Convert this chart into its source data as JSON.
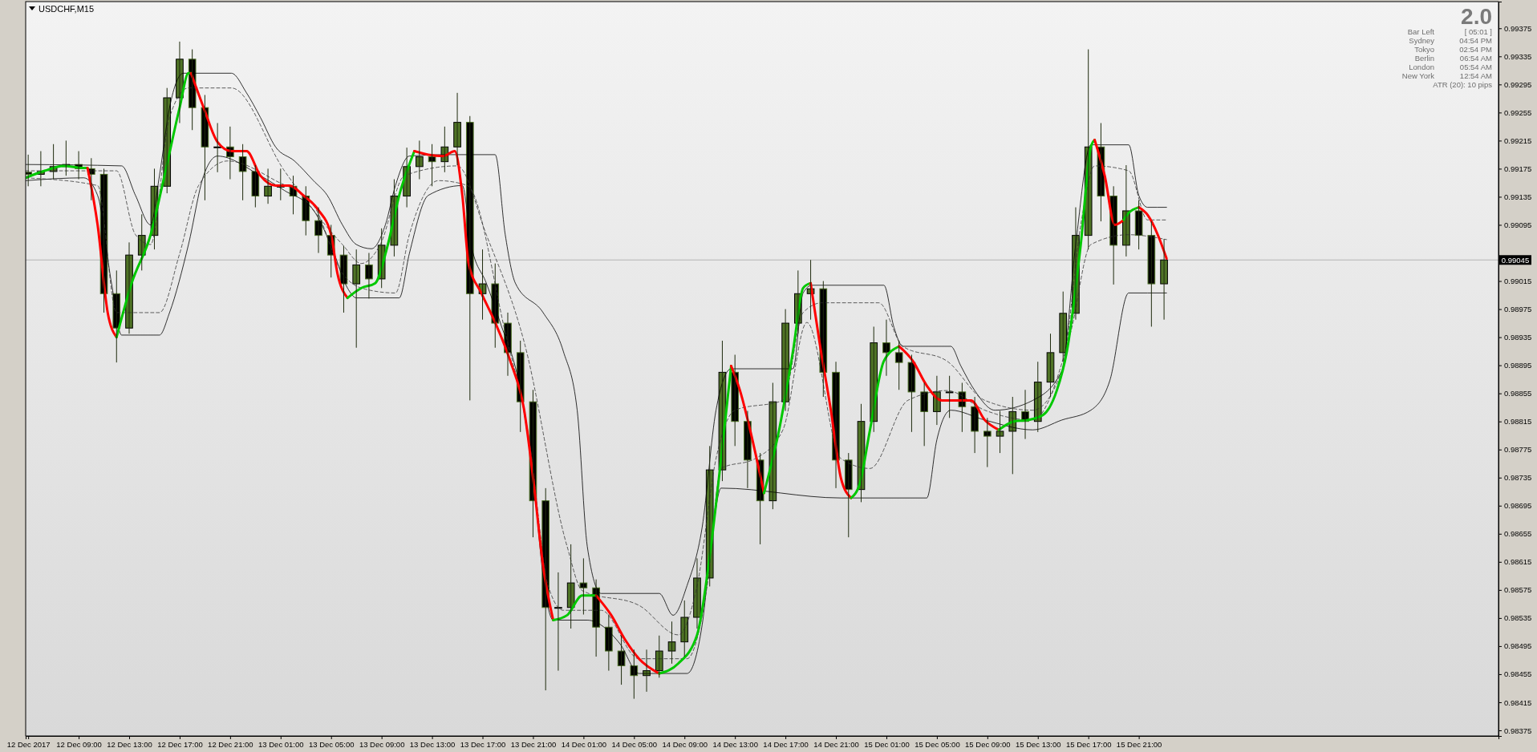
{
  "chart_data": {
    "type": "candlestick",
    "title": "USDCHF,M15",
    "annotations": [
      "2.0",
      "Bar Left",
      "[ 05:01 ]",
      "Sydney",
      "04:54 PM",
      "Tokyo",
      "02:54 PM",
      "Berlin",
      "06:54 AM",
      "London",
      "05:54 AM",
      "New York",
      "12:54 AM",
      "ATR (20): 10 pips"
    ],
    "xlim": [
      "2017-12-12T04:48",
      "2017-12-17T01:30"
    ],
    "xticks": [
      {
        "value": "2017-12-12T05:00",
        "label": "12 Dec 2017"
      },
      {
        "value": "2017-12-12T09:00",
        "label": "12 Dec 09:00"
      },
      {
        "value": "2017-12-12T13:00",
        "label": "12 Dec 13:00"
      },
      {
        "value": "2017-12-12T17:00",
        "label": "12 Dec 17:00"
      },
      {
        "value": "2017-12-12T21:00",
        "label": "12 Dec 21:00"
      },
      {
        "value": "2017-12-13T01:00",
        "label": "13 Dec 01:00"
      },
      {
        "value": "2017-12-13T05:00",
        "label": "13 Dec 05:00"
      },
      {
        "value": "2017-12-13T09:00",
        "label": "13 Dec 09:00"
      },
      {
        "value": "2017-12-13T13:00",
        "label": "13 Dec 13:00"
      },
      {
        "value": "2017-12-13T17:00",
        "label": "13 Dec 17:00"
      },
      {
        "value": "2017-12-13T21:00",
        "label": "13 Dec 21:00"
      },
      {
        "value": "2017-12-14T01:00",
        "label": "14 Dec 01:00"
      },
      {
        "value": "2017-12-14T05:00",
        "label": "14 Dec 05:00"
      },
      {
        "value": "2017-12-14T09:00",
        "label": "14 Dec 09:00"
      },
      {
        "value": "2017-12-14T13:00",
        "label": "14 Dec 13:00"
      },
      {
        "value": "2017-12-14T17:00",
        "label": "14 Dec 17:00"
      },
      {
        "value": "2017-12-14T21:00",
        "label": "14 Dec 21:00"
      },
      {
        "value": "2017-12-15T01:00",
        "label": "15 Dec 01:00"
      },
      {
        "value": "2017-12-15T05:00",
        "label": "15 Dec 05:00"
      },
      {
        "value": "2017-12-15T09:00",
        "label": "15 Dec 09:00"
      },
      {
        "value": "2017-12-15T13:00",
        "label": "15 Dec 13:00"
      },
      {
        "value": "2017-12-15T17:00",
        "label": "15 Dec 17:00"
      },
      {
        "value": "2017-12-15T21:00",
        "label": "15 Dec 21:00"
      }
    ],
    "ylim": [
      0.98367,
      0.99413
    ],
    "yticks": [
      0.99375,
      0.99335,
      0.99295,
      0.99255,
      0.99215,
      0.99175,
      0.99135,
      0.99095,
      0.99015,
      0.98975,
      0.98935,
      0.98895,
      0.98855,
      0.98815,
      0.98775,
      0.98735,
      0.98695,
      0.98655,
      0.98615,
      0.98575,
      0.98535,
      0.98495,
      0.98455,
      0.98415,
      0.98375
    ],
    "ref_lines": [
      {
        "axis": "y",
        "value": 0.99045,
        "label": "0.99045",
        "color": "#b4b4b4"
      }
    ],
    "series": [
      {
        "type": "line",
        "color": "#000000",
        "line_style": "solid",
        "x": [
          "2017-12-12T04:48",
          "2017-12-12T12:24",
          "2017-12-12T13:30",
          "2017-12-12T14:42",
          "2017-12-12T15:24",
          "2017-12-12T16:12",
          "2017-12-12T17:18",
          "2017-12-12T21:06",
          "2017-12-12T22:18",
          "2017-12-12T23:24",
          "2017-12-13T00:36",
          "2017-12-13T02:06",
          "2017-12-13T03:36",
          "2017-12-13T04:42",
          "2017-12-13T05:54",
          "2017-12-13T07:00",
          "2017-12-13T08:12",
          "2017-12-13T09:18",
          "2017-12-13T10:06",
          "2017-12-13T11:12",
          "2017-12-13T14:12",
          "2017-12-13T18:00",
          "2017-12-13T18:48",
          "2017-12-13T19:36",
          "2017-12-13T21:48",
          "2017-12-13T23:24",
          "2017-12-14T00:30",
          "2017-12-14T01:18",
          "2017-12-14T02:24",
          "2017-12-14T07:00",
          "2017-12-14T08:06",
          "2017-12-14T09:12",
          "2017-12-14T10:24",
          "2017-12-14T11:30",
          "2017-12-14T12:42",
          "2017-12-14T17:36",
          "2017-12-14T18:24",
          "2017-12-14T19:06",
          "2017-12-15T00:48",
          "2017-12-15T01:36",
          "2017-12-15T02:18",
          "2017-12-15T06:06",
          "2017-12-15T06:54",
          "2017-12-15T08:00",
          "2017-12-15T09:36",
          "2017-12-15T12:36",
          "2017-12-15T14:54",
          "2017-12-15T16:00",
          "2017-12-15T17:12",
          "2017-12-15T20:12",
          "2017-12-15T21:00",
          "2017-12-15T21:42",
          "2017-12-15T23:12"
        ],
        "values": [
          0.99181,
          0.99179,
          0.99137,
          0.99095,
          0.99165,
          0.99262,
          0.99311,
          0.99311,
          0.99283,
          0.99248,
          0.99206,
          0.99186,
          0.99158,
          0.99137,
          0.99095,
          0.99067,
          0.99061,
          0.99095,
          0.99151,
          0.99193,
          0.99195,
          0.99195,
          0.99081,
          0.99012,
          0.9897,
          0.98915,
          0.98831,
          0.98637,
          0.9857,
          0.9857,
          0.98539,
          0.98581,
          0.98664,
          0.98831,
          0.9889,
          0.9889,
          0.98998,
          0.99009,
          0.99009,
          0.98949,
          0.98922,
          0.98922,
          0.98894,
          0.98859,
          0.98831,
          0.98845,
          0.98887,
          0.99067,
          0.99209,
          0.99209,
          0.99137,
          0.9912,
          0.9912
        ]
      },
      {
        "type": "line",
        "color": "#000000",
        "line_style": "solid",
        "x": [
          "2017-12-12T04:48",
          "2017-12-12T09:24",
          "2017-12-12T10:30",
          "2017-12-12T11:36",
          "2017-12-12T12:24",
          "2017-12-12T15:24",
          "2017-12-12T16:12",
          "2017-12-12T17:42",
          "2017-12-12T18:54",
          "2017-12-12T20:00",
          "2017-12-12T23:24",
          "2017-12-13T01:18",
          "2017-12-13T03:36",
          "2017-12-13T05:06",
          "2017-12-13T06:18",
          "2017-12-13T07:00",
          "2017-12-13T10:24",
          "2017-12-13T11:12",
          "2017-12-13T12:42",
          "2017-12-13T15:24",
          "2017-12-13T16:06",
          "2017-12-13T17:18",
          "2017-12-13T18:24",
          "2017-12-13T20:00",
          "2017-12-13T21:06",
          "2017-12-13T21:48",
          "2017-12-13T22:36",
          "2017-12-14T01:18",
          "2017-12-14T03:54",
          "2017-12-14T05:24",
          "2017-12-14T09:12",
          "2017-12-14T10:24",
          "2017-12-14T11:06",
          "2017-12-14T11:54",
          "2017-12-14T21:24",
          "2017-12-15T04:12",
          "2017-12-15T05:00",
          "2017-12-15T06:06",
          "2017-12-15T08:48",
          "2017-12-15T12:36",
          "2017-12-15T14:54",
          "2017-12-15T17:12",
          "2017-12-15T18:42",
          "2017-12-15T20:12",
          "2017-12-15T23:12"
        ],
        "values": [
          0.99158,
          0.99162,
          0.99137,
          0.99012,
          0.98938,
          0.98938,
          0.9897,
          0.99067,
          0.99165,
          0.99193,
          0.99165,
          0.99144,
          0.99116,
          0.99061,
          0.99005,
          0.98991,
          0.98991,
          0.99054,
          0.99137,
          0.99151,
          0.99067,
          0.99012,
          0.98956,
          0.98859,
          0.9872,
          0.98595,
          0.98532,
          0.98532,
          0.98498,
          0.98456,
          0.98456,
          0.98525,
          0.98637,
          0.9872,
          0.98706,
          0.98706,
          0.98789,
          0.98831,
          0.98817,
          0.98803,
          0.98817,
          0.98831,
          0.98873,
          0.98998,
          0.98998
        ]
      },
      {
        "type": "line",
        "color": "#333333",
        "line_style": "dashed",
        "x": [
          "2017-12-12T04:48",
          "2017-12-12T12:00",
          "2017-12-12T13:30",
          "2017-12-12T14:42",
          "2017-12-12T16:12",
          "2017-12-12T17:42",
          "2017-12-12T21:06",
          "2017-12-13T01:18",
          "2017-12-13T05:54",
          "2017-12-13T07:24",
          "2017-12-13T08:54",
          "2017-12-13T10:48",
          "2017-12-13T15:00",
          "2017-12-13T17:18",
          "2017-12-13T20:18",
          "2017-12-13T23:42",
          "2017-12-14T00:54",
          "2017-12-14T05:24",
          "2017-12-14T08:30",
          "2017-12-14T10:00",
          "2017-12-14T11:30",
          "2017-12-14T13:00",
          "2017-12-14T16:48",
          "2017-12-14T18:24",
          "2017-12-14T19:54",
          "2017-12-15T00:24",
          "2017-12-15T02:18",
          "2017-12-15T05:48",
          "2017-12-15T08:48",
          "2017-12-15T12:36",
          "2017-12-15T14:54",
          "2017-12-15T16:24",
          "2017-12-15T17:30",
          "2017-12-15T20:12",
          "2017-12-15T21:42",
          "2017-12-15T23:12"
        ],
        "values": [
          0.99172,
          0.99172,
          0.99081,
          0.99067,
          0.99248,
          0.9929,
          0.9929,
          0.99172,
          0.99067,
          0.9904,
          0.99067,
          0.99165,
          0.99179,
          0.99081,
          0.98928,
          0.98637,
          0.98574,
          0.98553,
          0.98511,
          0.98581,
          0.98762,
          0.98831,
          0.98845,
          0.9897,
          0.98984,
          0.98984,
          0.98922,
          0.98901,
          0.98845,
          0.98831,
          0.98887,
          0.99095,
          0.99179,
          0.99172,
          0.99102,
          0.99102
        ]
      },
      {
        "type": "line",
        "color": "#333333",
        "line_style": "dashed",
        "x": [
          "2017-12-12T04:48",
          "2017-12-12T10:30",
          "2017-12-12T12:00",
          "2017-12-12T15:24",
          "2017-12-12T17:00",
          "2017-12-12T18:30",
          "2017-12-12T20:48",
          "2017-12-13T00:36",
          "2017-12-13T03:36",
          "2017-12-13T05:54",
          "2017-12-13T07:24",
          "2017-12-13T10:06",
          "2017-12-13T11:12",
          "2017-12-13T13:30",
          "2017-12-13T15:48",
          "2017-12-13T18:48",
          "2017-12-13T20:42",
          "2017-12-13T22:12",
          "2017-12-13T23:24",
          "2017-12-14T02:24",
          "2017-12-14T05:24",
          "2017-12-14T09:12",
          "2017-12-14T10:48",
          "2017-12-14T11:54",
          "2017-12-14T14:36",
          "2017-12-14T16:48",
          "2017-12-14T18:42",
          "2017-12-14T21:24",
          "2017-12-14T23:42",
          "2017-12-15T02:42",
          "2017-12-15T05:48",
          "2017-12-15T08:48",
          "2017-12-15T12:36",
          "2017-12-15T15:36",
          "2017-12-15T17:12",
          "2017-12-15T20:12",
          "2017-12-15T23:12"
        ],
        "values": [
          0.99162,
          0.99151,
          0.9897,
          0.9897,
          0.99054,
          0.99151,
          0.99186,
          0.99158,
          0.99123,
          0.99026,
          0.99005,
          0.98998,
          0.99081,
          0.99158,
          0.99151,
          0.98942,
          0.98789,
          0.98581,
          0.98546,
          0.98546,
          0.98477,
          0.98477,
          0.98581,
          0.98748,
          0.98762,
          0.98803,
          0.98956,
          0.98762,
          0.98748,
          0.98845,
          0.98859,
          0.98831,
          0.98817,
          0.98942,
          0.99067,
          0.99081,
          0.99074
        ]
      },
      {
        "type": "line",
        "color": "#00c800",
        "x": [
          "2017-12-12T04:48",
          "2017-12-12T06:18",
          "2017-12-12T07:48",
          "2017-12-12T09:24",
          "2017-12-12T09:42"
        ],
        "values": [
          0.99162,
          0.99172,
          0.99179,
          0.99176,
          0.99176
        ]
      },
      {
        "type": "line",
        "color": "#ff0000",
        "x": [
          "2017-12-12T09:42",
          "2017-12-12T10:30",
          "2017-12-12T11:18",
          "2017-12-12T12:00"
        ],
        "values": [
          0.99176,
          0.99095,
          0.9897,
          0.98935
        ]
      },
      {
        "type": "line",
        "color": "#00c800",
        "x": [
          "2017-12-12T12:00",
          "2017-12-12T13:12",
          "2017-12-12T14:42",
          "2017-12-12T15:48",
          "2017-12-12T17:00",
          "2017-12-12T17:42",
          "2017-12-12T17:54"
        ],
        "values": [
          0.98935,
          0.99012,
          0.99081,
          0.99165,
          0.99262,
          0.99311,
          0.99311
        ]
      },
      {
        "type": "line",
        "color": "#ff0000",
        "x": [
          "2017-12-12T17:54",
          "2017-12-12T18:54",
          "2017-12-12T20:00",
          "2017-12-12T21:06",
          "2017-12-12T22:18",
          "2017-12-12T23:24",
          "2017-12-13T00:36",
          "2017-12-13T01:42",
          "2017-12-13T02:48",
          "2017-12-13T04:00",
          "2017-12-13T05:00",
          "2017-12-13T05:30",
          "2017-12-13T06:18"
        ],
        "values": [
          0.99311,
          0.99262,
          0.99213,
          0.992,
          0.992,
          0.99165,
          0.99151,
          0.99151,
          0.99137,
          0.99116,
          0.99081,
          0.99026,
          0.98991
        ]
      },
      {
        "type": "line",
        "color": "#00c800",
        "x": [
          "2017-12-13T06:18",
          "2017-12-13T07:24",
          "2017-12-13T08:30",
          "2017-12-13T09:30",
          "2017-12-13T10:24",
          "2017-12-13T11:36"
        ],
        "values": [
          0.98991,
          0.99005,
          0.99012,
          0.99067,
          0.99137,
          0.992
        ]
      },
      {
        "type": "line",
        "color": "#ff0000",
        "x": [
          "2017-12-13T11:36",
          "2017-12-13T12:42",
          "2017-12-13T13:54",
          "2017-12-13T14:48",
          "2017-12-13T15:24",
          "2017-12-13T15:54",
          "2017-12-13T16:54",
          "2017-12-13T18:00",
          "2017-12-13T19:12",
          "2017-12-13T20:18",
          "2017-12-13T21:06",
          "2017-12-13T21:48",
          "2017-12-13T22:36"
        ],
        "values": [
          0.992,
          0.99195,
          0.99193,
          0.992,
          0.99137,
          0.9904,
          0.98998,
          0.98956,
          0.98901,
          0.98831,
          0.9872,
          0.98609,
          0.98532
        ]
      },
      {
        "type": "line",
        "color": "#00c800",
        "x": [
          "2017-12-13T22:36",
          "2017-12-13T23:42",
          "2017-12-14T00:54",
          "2017-12-14T02:00"
        ],
        "values": [
          0.98532,
          0.98539,
          0.98567,
          0.98567
        ]
      },
      {
        "type": "line",
        "color": "#ff0000",
        "x": [
          "2017-12-14T02:00",
          "2017-12-14T03:12",
          "2017-12-14T04:18",
          "2017-12-14T05:24",
          "2017-12-14T07:00"
        ],
        "values": [
          0.98567,
          0.98539,
          0.98504,
          0.98477,
          0.98456
        ]
      },
      {
        "type": "line",
        "color": "#00c800",
        "x": [
          "2017-12-14T07:00",
          "2017-12-14T08:30",
          "2017-12-14T10:00",
          "2017-12-14T11:06",
          "2017-12-14T11:54",
          "2017-12-14T12:42"
        ],
        "values": [
          0.98456,
          0.9847,
          0.98511,
          0.98637,
          0.98762,
          0.98894
        ]
      },
      {
        "type": "line",
        "color": "#ff0000",
        "x": [
          "2017-12-14T12:42",
          "2017-12-14T13:24",
          "2017-12-14T14:12",
          "2017-12-14T15:18"
        ],
        "values": [
          0.98894,
          0.98859,
          0.98803,
          0.98713
        ]
      },
      {
        "type": "line",
        "color": "#00c800",
        "x": [
          "2017-12-14T15:18",
          "2017-12-14T16:30",
          "2017-12-14T17:36",
          "2017-12-14T18:24",
          "2017-12-14T19:00"
        ],
        "values": [
          0.98713,
          0.98803,
          0.98915,
          0.99005,
          0.99012
        ]
      },
      {
        "type": "line",
        "color": "#ff0000",
        "x": [
          "2017-12-14T19:00",
          "2017-12-14T19:42",
          "2017-12-14T20:36",
          "2017-12-14T21:24",
          "2017-12-14T22:12"
        ],
        "values": [
          0.99012,
          0.98928,
          0.98831,
          0.98734,
          0.98706
        ]
      },
      {
        "type": "line",
        "color": "#00c800",
        "x": [
          "2017-12-14T22:12",
          "2017-12-14T22:54",
          "2017-12-14T23:42",
          "2017-12-15T00:48",
          "2017-12-15T02:00"
        ],
        "values": [
          0.98706,
          0.98727,
          0.98803,
          0.98901,
          0.98922
        ]
      },
      {
        "type": "line",
        "color": "#ff0000",
        "x": [
          "2017-12-15T02:00",
          "2017-12-15T03:06",
          "2017-12-15T04:12",
          "2017-12-15T05:24",
          "2017-12-15T06:30",
          "2017-12-15T07:42",
          "2017-12-15T08:48",
          "2017-12-15T09:54"
        ],
        "values": [
          0.98922,
          0.98901,
          0.98866,
          0.98845,
          0.98845,
          0.98845,
          0.98817,
          0.98803
        ]
      },
      {
        "type": "line",
        "color": "#00c800",
        "x": [
          "2017-12-15T09:54",
          "2017-12-15T11:06",
          "2017-12-15T12:12",
          "2017-12-15T13:24",
          "2017-12-15T14:30",
          "2017-12-15T15:18",
          "2017-12-15T16:24",
          "2017-12-15T17:12",
          "2017-12-15T17:30"
        ],
        "values": [
          0.98803,
          0.98815,
          0.98817,
          0.98824,
          0.98859,
          0.98915,
          0.99067,
          0.99206,
          0.99216
        ]
      },
      {
        "type": "line",
        "color": "#ff0000",
        "x": [
          "2017-12-15T17:30",
          "2017-12-15T18:18",
          "2017-12-15T19:06",
          "2017-12-15T19:48"
        ],
        "values": [
          0.99216,
          0.99165,
          0.99095,
          0.99102
        ]
      },
      {
        "type": "line",
        "color": "#00c800",
        "x": [
          "2017-12-15T19:48",
          "2017-12-15T20:12",
          "2017-12-15T21:00"
        ],
        "values": [
          0.99102,
          0.99112,
          0.9912
        ]
      },
      {
        "type": "line",
        "color": "#ff0000",
        "x": [
          "2017-12-15T21:00",
          "2017-12-15T21:42",
          "2017-12-15T22:30",
          "2017-12-15T23:12"
        ],
        "values": [
          0.9912,
          0.99109,
          0.99081,
          0.99047
        ]
      },
      {
        "color": "#4f7326",
        "x": [
          "2017-12-12T05:00",
          "2017-12-12T06:00",
          "2017-12-12T07:00",
          "2017-12-12T08:00",
          "2017-12-12T09:00",
          "2017-12-12T10:00",
          "2017-12-12T11:00",
          "2017-12-12T12:00",
          "2017-12-12T13:00",
          "2017-12-12T14:00",
          "2017-12-12T15:00",
          "2017-12-12T16:00",
          "2017-12-12T17:00",
          "2017-12-12T18:00",
          "2017-12-12T19:00",
          "2017-12-12T20:00",
          "2017-12-12T21:00",
          "2017-12-12T22:00",
          "2017-12-12T23:00",
          "2017-12-13T00:00",
          "2017-12-13T01:00",
          "2017-12-13T02:00",
          "2017-12-13T03:00",
          "2017-12-13T04:00",
          "2017-12-13T05:00",
          "2017-12-13T06:00",
          "2017-12-13T07:00",
          "2017-12-13T08:00",
          "2017-12-13T09:00",
          "2017-12-13T10:00",
          "2017-12-13T11:00",
          "2017-12-13T12:00",
          "2017-12-13T13:00",
          "2017-12-13T14:00",
          "2017-12-13T15:00",
          "2017-12-13T16:00",
          "2017-12-13T17:00",
          "2017-12-13T18:00",
          "2017-12-13T19:00",
          "2017-12-13T20:00",
          "2017-12-13T21:00",
          "2017-12-13T22:00",
          "2017-12-13T23:00",
          "2017-12-14T00:00",
          "2017-12-14T01:00",
          "2017-12-14T02:00",
          "2017-12-14T03:00",
          "2017-12-14T04:00",
          "2017-12-14T05:00",
          "2017-12-14T06:00",
          "2017-12-14T07:00",
          "2017-12-14T08:00",
          "2017-12-14T09:00",
          "2017-12-14T10:00",
          "2017-12-14T11:00",
          "2017-12-14T12:00",
          "2017-12-14T13:00",
          "2017-12-14T14:00",
          "2017-12-14T15:00",
          "2017-12-14T16:00",
          "2017-12-14T17:00",
          "2017-12-14T18:00",
          "2017-12-14T19:00",
          "2017-12-14T20:00",
          "2017-12-14T21:00",
          "2017-12-14T22:00",
          "2017-12-14T23:00",
          "2017-12-15T00:00",
          "2017-12-15T01:00",
          "2017-12-15T02:00",
          "2017-12-15T03:00",
          "2017-12-15T04:00",
          "2017-12-15T05:00",
          "2017-12-15T06:00",
          "2017-12-15T07:00",
          "2017-12-15T08:00",
          "2017-12-15T09:00",
          "2017-12-15T10:00",
          "2017-12-15T11:00",
          "2017-12-15T12:00",
          "2017-12-15T13:00",
          "2017-12-15T14:00",
          "2017-12-15T15:00",
          "2017-12-15T16:00",
          "2017-12-15T17:00",
          "2017-12-15T18:00",
          "2017-12-15T19:00",
          "2017-12-15T20:00",
          "2017-12-15T21:00",
          "2017-12-15T22:00",
          "2017-12-15T23:00"
        ],
        "ohlc": [
          [
            0.9917,
            0.99195,
            0.9915,
            0.99167
          ],
          [
            0.99167,
            0.992,
            0.9915,
            0.99171
          ],
          [
            0.99171,
            0.9921,
            0.9916,
            0.99178
          ],
          [
            0.99178,
            0.99215,
            0.99165,
            0.99181
          ],
          [
            0.99181,
            0.992,
            0.9916,
            0.99175
          ],
          [
            0.99175,
            0.9919,
            0.9913,
            0.99167
          ],
          [
            0.99167,
            0.99175,
            0.9897,
            0.98997
          ],
          [
            0.98997,
            0.9903,
            0.98899,
            0.98948
          ],
          [
            0.98948,
            0.9907,
            0.9894,
            0.99052
          ],
          [
            0.99052,
            0.9911,
            0.9903,
            0.9908
          ],
          [
            0.9908,
            0.99175,
            0.9906,
            0.9915
          ],
          [
            0.9915,
            0.9929,
            0.9914,
            0.99276
          ],
          [
            0.99276,
            0.99356,
            0.9924,
            0.99331
          ],
          [
            0.99331,
            0.99345,
            0.9923,
            0.99262
          ],
          [
            0.99262,
            0.9928,
            0.9913,
            0.99206
          ],
          [
            0.99206,
            0.9924,
            0.9917,
            0.99206
          ],
          [
            0.99206,
            0.99235,
            0.9916,
            0.99192
          ],
          [
            0.99192,
            0.9921,
            0.9913,
            0.99171
          ],
          [
            0.99171,
            0.9918,
            0.9912,
            0.99136
          ],
          [
            0.99136,
            0.99175,
            0.99125,
            0.9915
          ],
          [
            0.9915,
            0.99175,
            0.9913,
            0.9915
          ],
          [
            0.9915,
            0.99165,
            0.9911,
            0.99136
          ],
          [
            0.99136,
            0.9915,
            0.9908,
            0.99101
          ],
          [
            0.99101,
            0.9912,
            0.99055,
            0.9908
          ],
          [
            0.9908,
            0.99095,
            0.9902,
            0.99052
          ],
          [
            0.99052,
            0.99065,
            0.9897,
            0.99011
          ],
          [
            0.99011,
            0.9906,
            0.9892,
            0.99038
          ],
          [
            0.99038,
            0.99055,
            0.9899,
            0.99018
          ],
          [
            0.99018,
            0.9909,
            0.99005,
            0.99066
          ],
          [
            0.99066,
            0.9916,
            0.9905,
            0.99136
          ],
          [
            0.99136,
            0.99205,
            0.9912,
            0.99178
          ],
          [
            0.99178,
            0.99215,
            0.9916,
            0.99192
          ],
          [
            0.99192,
            0.9921,
            0.9915,
            0.99185
          ],
          [
            0.99185,
            0.99235,
            0.9917,
            0.99206
          ],
          [
            0.99206,
            0.99283,
            0.9918,
            0.99241
          ],
          [
            0.99241,
            0.9925,
            0.98845,
            0.98997
          ],
          [
            0.98997,
            0.9906,
            0.9896,
            0.99011
          ],
          [
            0.99011,
            0.9904,
            0.9892,
            0.98955
          ],
          [
            0.98955,
            0.9897,
            0.9888,
            0.98913
          ],
          [
            0.98913,
            0.9893,
            0.988,
            0.98843
          ],
          [
            0.98843,
            0.9886,
            0.9865,
            0.98702
          ],
          [
            0.98702,
            0.9872,
            0.98432,
            0.9855
          ],
          [
            0.9855,
            0.986,
            0.9846,
            0.9855
          ],
          [
            0.9855,
            0.9864,
            0.9852,
            0.98585
          ],
          [
            0.98585,
            0.9862,
            0.9854,
            0.98578
          ],
          [
            0.98578,
            0.9859,
            0.9848,
            0.98522
          ],
          [
            0.98522,
            0.9854,
            0.9846,
            0.98488
          ],
          [
            0.98488,
            0.9851,
            0.9844,
            0.98467
          ],
          [
            0.98467,
            0.9849,
            0.9842,
            0.98453
          ],
          [
            0.98453,
            0.9849,
            0.9843,
            0.9846
          ],
          [
            0.9846,
            0.9851,
            0.9845,
            0.98488
          ],
          [
            0.98488,
            0.9853,
            0.9847,
            0.98501
          ],
          [
            0.98501,
            0.9856,
            0.9848,
            0.98536
          ],
          [
            0.98536,
            0.9862,
            0.9852,
            0.98592
          ],
          [
            0.98592,
            0.9878,
            0.9858,
            0.98746
          ],
          [
            0.98746,
            0.9893,
            0.9873,
            0.98885
          ],
          [
            0.98885,
            0.9891,
            0.9878,
            0.98815
          ],
          [
            0.98815,
            0.9883,
            0.9872,
            0.9876
          ],
          [
            0.9876,
            0.9877,
            0.9864,
            0.98702
          ],
          [
            0.98702,
            0.9887,
            0.9869,
            0.98843
          ],
          [
            0.98843,
            0.98975,
            0.9883,
            0.98955
          ],
          [
            0.98955,
            0.9903,
            0.9894,
            0.98997
          ],
          [
            0.98997,
            0.99045,
            0.9896,
            0.99004
          ],
          [
            0.99004,
            0.99015,
            0.9885,
            0.98885
          ],
          [
            0.98885,
            0.989,
            0.9872,
            0.9876
          ],
          [
            0.9876,
            0.9877,
            0.9865,
            0.98718
          ],
          [
            0.98718,
            0.9884,
            0.987,
            0.98815
          ],
          [
            0.98815,
            0.9895,
            0.988,
            0.98927
          ],
          [
            0.98927,
            0.9896,
            0.9888,
            0.98913
          ],
          [
            0.98913,
            0.9893,
            0.9886,
            0.98899
          ],
          [
            0.98899,
            0.9891,
            0.988,
            0.98857
          ],
          [
            0.98857,
            0.9887,
            0.9878,
            0.98829
          ],
          [
            0.98829,
            0.9888,
            0.9881,
            0.98857
          ],
          [
            0.98857,
            0.9888,
            0.9882,
            0.98857
          ],
          [
            0.98857,
            0.9887,
            0.988,
            0.98836
          ],
          [
            0.98836,
            0.9885,
            0.9877,
            0.98801
          ],
          [
            0.98801,
            0.9882,
            0.9875,
            0.98794
          ],
          [
            0.98794,
            0.9883,
            0.9877,
            0.98801
          ],
          [
            0.98801,
            0.9885,
            0.9874,
            0.98829
          ],
          [
            0.98829,
            0.9886,
            0.9879,
            0.98815
          ],
          [
            0.98815,
            0.989,
            0.988,
            0.98871
          ],
          [
            0.98871,
            0.9894,
            0.9885,
            0.98913
          ],
          [
            0.98913,
            0.99,
            0.989,
            0.98969
          ],
          [
            0.98969,
            0.9912,
            0.9896,
            0.9908
          ],
          [
            0.9908,
            0.99345,
            0.9906,
            0.99206
          ],
          [
            0.99206,
            0.9924,
            0.991,
            0.99136
          ],
          [
            0.99136,
            0.9915,
            0.9901,
            0.99066
          ],
          [
            0.99066,
            0.9918,
            0.9905,
            0.99115
          ],
          [
            0.99115,
            0.9913,
            0.9906,
            0.9908
          ],
          [
            0.9908,
            0.991,
            0.9895,
            0.99011
          ],
          [
            0.99011,
            0.99075,
            0.9896,
            0.99045
          ]
        ]
      }
    ]
  }
}
